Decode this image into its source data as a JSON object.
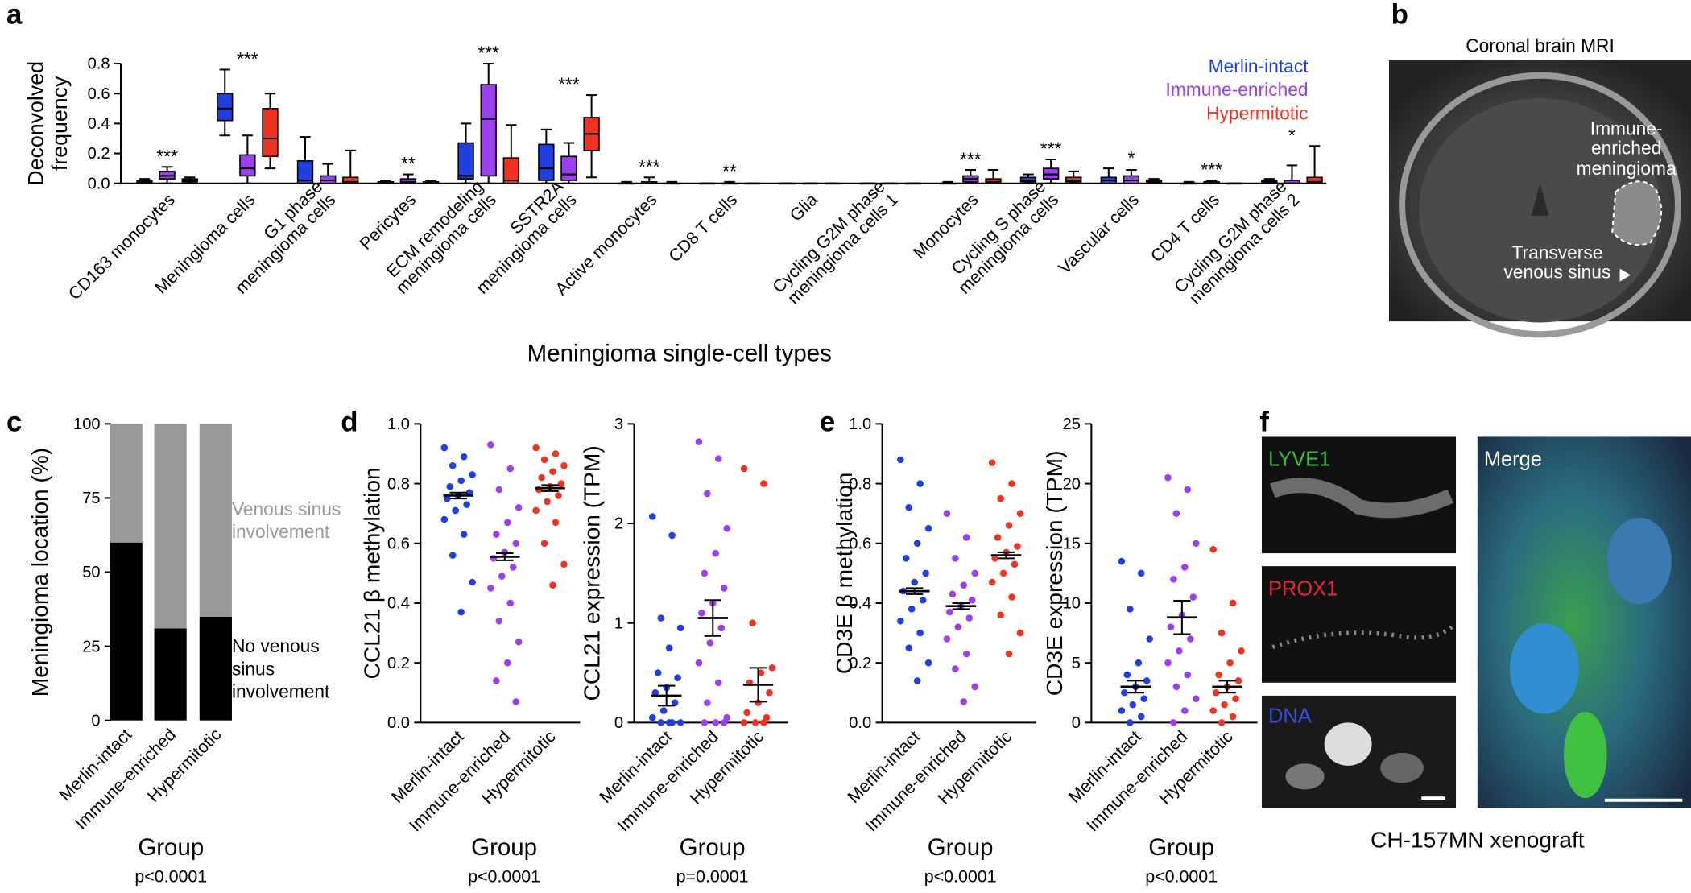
{
  "chart_data": [
    {
      "type": "box",
      "ylabel": [
        "Deconvolved",
        "frequency"
      ],
      "xlabel": "Meningioma single-cell types",
      "ylim": [
        0,
        0.8
      ],
      "yticks": [
        {
          "value": 0,
          "label": "0.0"
        },
        0.2,
        0.4,
        0.6,
        0.8
      ],
      "categories": [
        [
          "CD163 monocytes"
        ],
        [
          "Meningioma cells"
        ],
        [
          "G1 phase",
          "meningioma cells"
        ],
        [
          "Pericytes"
        ],
        [
          "ECM remodeling",
          "meningioma cells"
        ],
        [
          "SSTR2A",
          "meningioma cells"
        ],
        [
          "Active monocytes"
        ],
        [
          "CD8 T cells"
        ],
        [
          "Glia"
        ],
        [
          "Cycling G2M phase",
          "meningioma cells 1"
        ],
        [
          "Monocytes"
        ],
        [
          "Cycling S phase",
          "meningioma cells"
        ],
        [
          "Vascular cells"
        ],
        [
          "CD4 T cells"
        ],
        [
          "Cycling G2M phase",
          "meningioma cells 2"
        ]
      ],
      "annotations": [
        "***",
        "***",
        null,
        "**",
        "***",
        "***",
        "***",
        "**",
        null,
        null,
        "***",
        "***",
        "*",
        "***",
        "*"
      ],
      "series": [
        {
          "name": "Merlin-intact",
          "color": "#1f3fe0",
          "values": [
            [
              0,
              0,
              0.01,
              0.02,
              0.03
            ],
            [
              0.32,
              0.42,
              0.5,
              0.6,
              0.76
            ],
            [
              0,
              0,
              0.02,
              0.15,
              0.31
            ],
            [
              0,
              0,
              0,
              0.01,
              0.02
            ],
            [
              0,
              0.03,
              0.05,
              0.27,
              0.4
            ],
            [
              0,
              0.02,
              0.1,
              0.26,
              0.36
            ],
            [
              0,
              0,
              0,
              0,
              0.01
            ],
            [
              0,
              0,
              0,
              0,
              0
            ],
            [
              0,
              0,
              0,
              0,
              0
            ],
            [
              0,
              0,
              0,
              0,
              0
            ],
            [
              0,
              0,
              0,
              0,
              0.01
            ],
            [
              0,
              0.01,
              0.02,
              0.04,
              0.06
            ],
            [
              0,
              0,
              0.02,
              0.04,
              0.1
            ],
            [
              0,
              0,
              0,
              0,
              0.01
            ],
            [
              0,
              0,
              0.01,
              0.02,
              0.03
            ]
          ]
        },
        {
          "name": "Immune-enriched",
          "color": "#9b3ff0",
          "values": [
            [
              0,
              0.03,
              0.05,
              0.08,
              0.11
            ],
            [
              0,
              0.05,
              0.1,
              0.19,
              0.32
            ],
            [
              0,
              0,
              0.02,
              0.05,
              0.13
            ],
            [
              0,
              0,
              0.01,
              0.03,
              0.06
            ],
            [
              0,
              0.05,
              0.43,
              0.66,
              0.8
            ],
            [
              0,
              0.02,
              0.06,
              0.18,
              0.27
            ],
            [
              0,
              0,
              0,
              0.01,
              0.04
            ],
            [
              0,
              0,
              0,
              0,
              0.01
            ],
            [
              0,
              0,
              0,
              0,
              0
            ],
            [
              0,
              0,
              0,
              0,
              0
            ],
            [
              0,
              0.01,
              0.03,
              0.05,
              0.09
            ],
            [
              0,
              0.03,
              0.06,
              0.1,
              0.16
            ],
            [
              0,
              0,
              0.02,
              0.05,
              0.09
            ],
            [
              0,
              0,
              0,
              0.01,
              0.02
            ],
            [
              0,
              0,
              0,
              0.02,
              0.12
            ]
          ]
        },
        {
          "name": "Hypermitotic",
          "color": "#ee3322",
          "values": [
            [
              0,
              0.01,
              0.02,
              0.03,
              0.04
            ],
            [
              0.1,
              0.18,
              0.3,
              0.5,
              0.6
            ],
            [
              0,
              0,
              0.01,
              0.04,
              0.22
            ],
            [
              0,
              0,
              0,
              0.01,
              0.02
            ],
            [
              0,
              0,
              0.02,
              0.17,
              0.39
            ],
            [
              0.04,
              0.22,
              0.33,
              0.44,
              0.59
            ],
            [
              0,
              0,
              0,
              0,
              0.01
            ],
            [
              0,
              0,
              0,
              0,
              0
            ],
            [
              0,
              0,
              0,
              0,
              0
            ],
            [
              0,
              0,
              0,
              0,
              0
            ],
            [
              0,
              0,
              0.01,
              0.03,
              0.09
            ],
            [
              0,
              0.01,
              0.02,
              0.04,
              0.08
            ],
            [
              0,
              0,
              0.01,
              0.02,
              0.03
            ],
            [
              0,
              0,
              0,
              0,
              0
            ],
            [
              0,
              0,
              0.01,
              0.04,
              0.25
            ]
          ]
        }
      ]
    },
    {
      "type": "bar",
      "stacked": true,
      "ylabel": "Meningioma location (%)",
      "xlabel": "Group",
      "note": "p<0.0001",
      "ylim": [
        0,
        100
      ],
      "yticks": [
        0,
        25,
        50,
        75,
        100
      ],
      "categories": [
        "Merlin-intact",
        "Immune-enriched",
        "Hypermitotic"
      ],
      "series": [
        {
          "name": [
            "No venous",
            "sinus",
            "involvement"
          ],
          "color": "#000000",
          "values": [
            60,
            31,
            35
          ]
        },
        {
          "name": [
            "Venous sinus",
            "involvement"
          ],
          "color": "#999999",
          "values": [
            40,
            69,
            65
          ]
        }
      ]
    },
    {
      "type": "strip",
      "ylabel": "CCL21 β methylation",
      "xlabel": "Group",
      "note": "p<0.0001",
      "ylim": [
        0,
        1
      ],
      "yticks": [
        {
          "value": 0,
          "label": "0.0"
        },
        0.2,
        0.4,
        0.6,
        0.8,
        {
          "value": 1,
          "label": "1.0"
        }
      ],
      "categories": [
        "Merlin-intact",
        "Immune-enriched",
        "Hypermitotic"
      ],
      "colors": [
        "#1f3fe0",
        "#9b3ff0",
        "#ee3322"
      ],
      "values": [
        [
          0.92,
          0.89,
          0.86,
          0.83,
          0.81,
          0.79,
          0.77,
          0.76,
          0.75,
          0.73,
          0.71,
          0.68,
          0.63,
          0.56,
          0.47,
          0.37
        ],
        [
          0.93,
          0.85,
          0.78,
          0.72,
          0.67,
          0.63,
          0.6,
          0.57,
          0.55,
          0.52,
          0.49,
          0.45,
          0.4,
          0.34,
          0.27,
          0.2,
          0.14,
          0.07
        ],
        [
          0.92,
          0.9,
          0.88,
          0.86,
          0.84,
          0.82,
          0.8,
          0.79,
          0.78,
          0.76,
          0.74,
          0.71,
          0.67,
          0.6,
          0.53,
          0.46
        ]
      ],
      "means": [
        0.76,
        0.555,
        0.785
      ],
      "sems": [
        0.01,
        0.012,
        0.01
      ]
    },
    {
      "type": "strip",
      "ylabel": "CCL21 expression (TPM)",
      "xlabel": "Group",
      "note": "p=0.0001",
      "ylim": [
        0,
        3
      ],
      "yticks": [
        0,
        1,
        2,
        3
      ],
      "categories": [
        "Merlin-intact",
        "Immune-enriched",
        "Hypermitotic"
      ],
      "colors": [
        "#1f3fe0",
        "#9b3ff0",
        "#ee3322"
      ],
      "values": [
        [
          2.07,
          1.88,
          1.05,
          0.95,
          0.75,
          0.5,
          0.45,
          0.35,
          0.3,
          0.2,
          0.12,
          0.05,
          0,
          0,
          0,
          0
        ],
        [
          2.82,
          2.65,
          2.3,
          1.95,
          1.7,
          1.5,
          1.35,
          1.2,
          1.1,
          0.95,
          0.8,
          0.6,
          0.4,
          0.2,
          0.05,
          0,
          0,
          0
        ],
        [
          2.55,
          2.4,
          1.0,
          0.55,
          0.5,
          0.4,
          0.3,
          0.2,
          0.1,
          0.05,
          0,
          0,
          0
        ]
      ],
      "means": [
        0.27,
        1.05,
        0.38
      ],
      "sems": [
        0.1,
        0.18,
        0.17
      ]
    },
    {
      "type": "strip",
      "ylabel": "CD3E β methylation",
      "xlabel": "Group",
      "note": "p<0.0001",
      "ylim": [
        0,
        1
      ],
      "yticks": [
        {
          "value": 0,
          "label": "0.0"
        },
        0.2,
        0.4,
        0.6,
        0.8,
        {
          "value": 1,
          "label": "1.0"
        }
      ],
      "categories": [
        "Merlin-intact",
        "Immune-enriched",
        "Hypermitotic"
      ],
      "colors": [
        "#1f3fe0",
        "#9b3ff0",
        "#ee3322"
      ],
      "values": [
        [
          0.88,
          0.8,
          0.72,
          0.65,
          0.6,
          0.55,
          0.5,
          0.47,
          0.44,
          0.41,
          0.38,
          0.34,
          0.3,
          0.25,
          0.2,
          0.14
        ],
        [
          0.7,
          0.62,
          0.55,
          0.5,
          0.46,
          0.43,
          0.41,
          0.39,
          0.37,
          0.35,
          0.32,
          0.28,
          0.23,
          0.18,
          0.12,
          0.07
        ],
        [
          0.87,
          0.8,
          0.75,
          0.7,
          0.66,
          0.62,
          0.59,
          0.57,
          0.55,
          0.53,
          0.5,
          0.47,
          0.42,
          0.36,
          0.3,
          0.23
        ]
      ],
      "means": [
        0.44,
        0.39,
        0.56
      ],
      "sems": [
        0.01,
        0.01,
        0.01
      ]
    },
    {
      "type": "strip",
      "ylabel": "CD3E expression (TPM)",
      "xlabel": "Group",
      "note": "p<0.0001",
      "ylim": [
        0,
        25
      ],
      "yticks": [
        0,
        5,
        10,
        15,
        20,
        25
      ],
      "categories": [
        "Merlin-intact",
        "Immune-enriched",
        "Hypermitotic"
      ],
      "colors": [
        "#1f3fe0",
        "#9b3ff0",
        "#ee3322"
      ],
      "values": [
        [
          13.5,
          12.5,
          9.5,
          7,
          5,
          4,
          3.5,
          3,
          2.5,
          2,
          1.5,
          1,
          0.5,
          0
        ],
        [
          20.5,
          19.5,
          17.5,
          15,
          13,
          12,
          10.5,
          9,
          8,
          7,
          6,
          5,
          4,
          3,
          2,
          1,
          0
        ],
        [
          14.5,
          10,
          7.5,
          6,
          5,
          4,
          3.5,
          3,
          2.5,
          2,
          1.5,
          1,
          0.5,
          0
        ]
      ],
      "means": [
        3.0,
        8.8,
        3.0
      ],
      "sems": [
        0.5,
        1.4,
        0.5
      ]
    }
  ],
  "figure": {
    "panels": [
      "a",
      "b",
      "c",
      "d",
      "e",
      "f"
    ],
    "mri": {
      "title": "Coronal brain MRI",
      "tumor_label": [
        "Immune-",
        "enriched",
        "meningioma"
      ],
      "sinus_label": [
        "Transverse",
        "venous sinus"
      ]
    },
    "xenograft": {
      "channels": [
        "LYVE1",
        "PROX1",
        "DNA"
      ],
      "merge": "Merge",
      "caption": "CH-157MN xenograft"
    }
  }
}
